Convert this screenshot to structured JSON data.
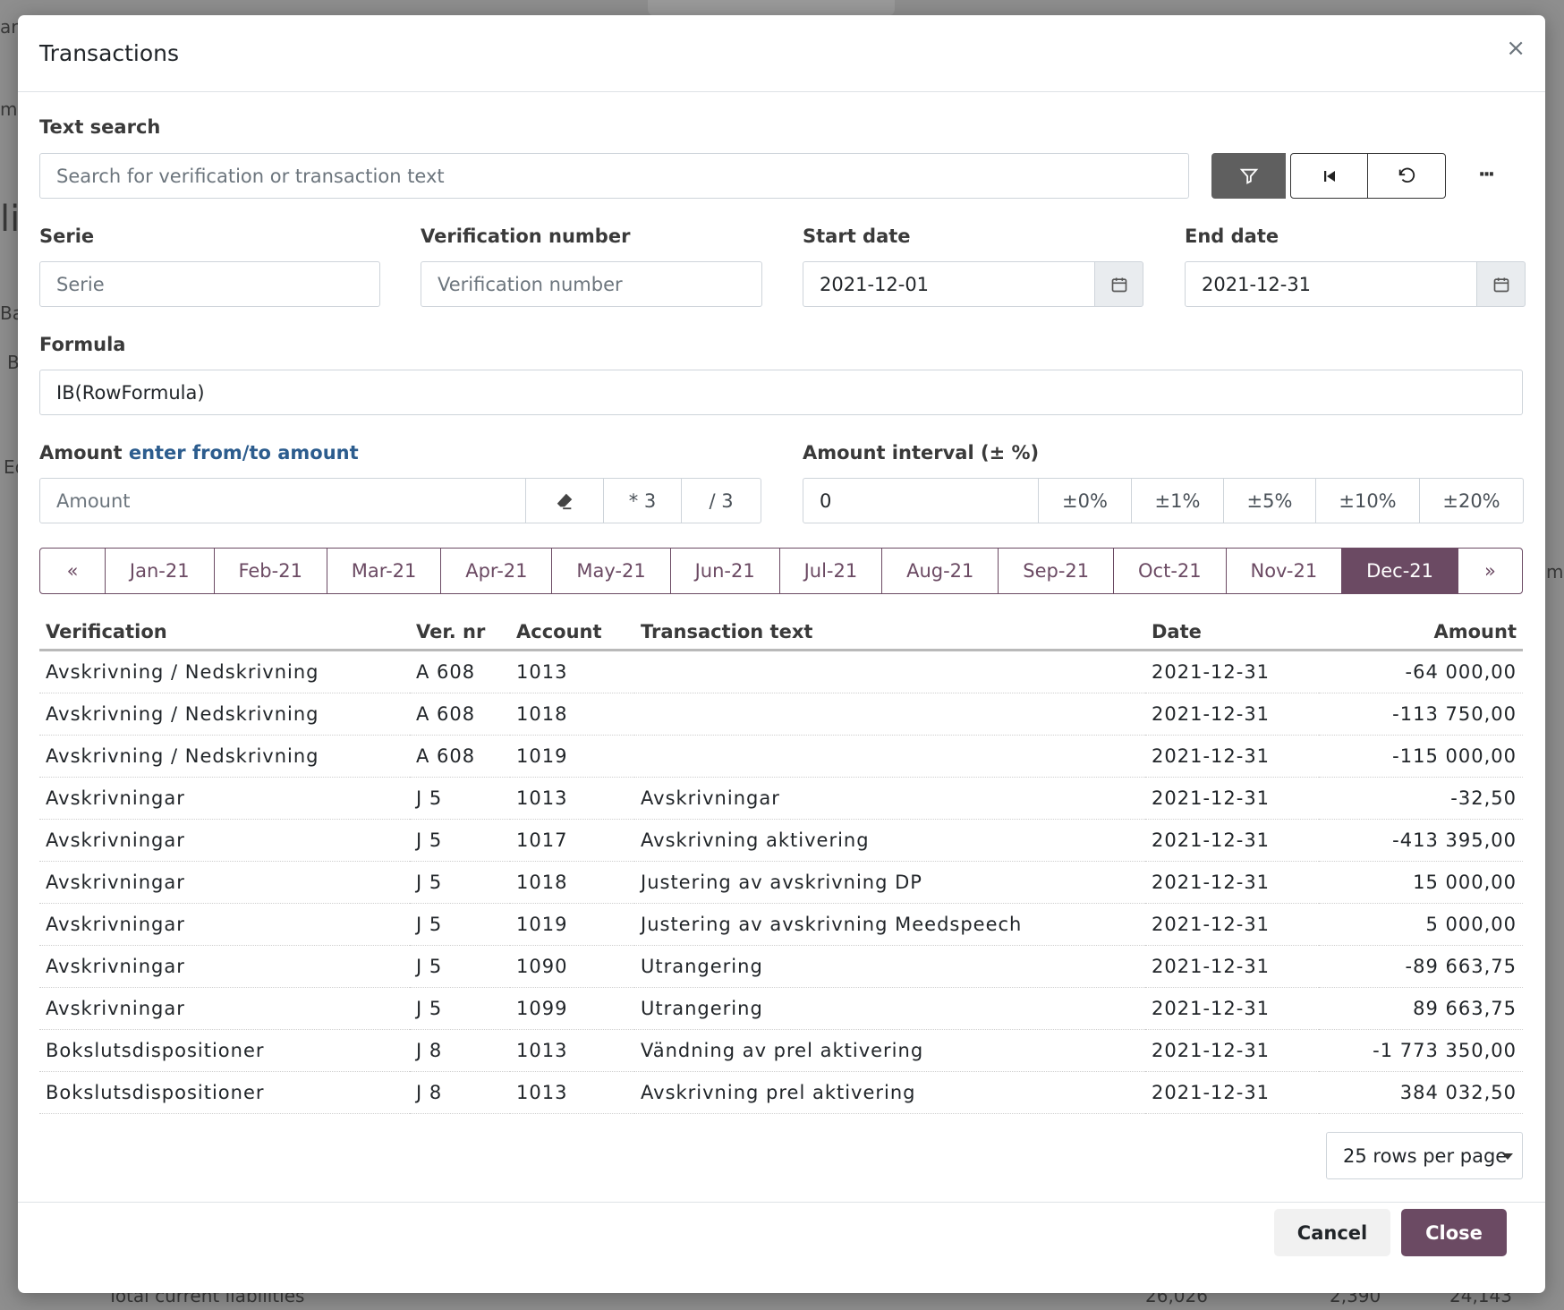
{
  "background": {
    "fragments": [
      "ar",
      "m",
      "li",
      "Bas",
      "B",
      "Eq",
      "m",
      "Total current liabilities",
      "26,026",
      "2,390",
      "24,143"
    ]
  },
  "modal": {
    "title": "Transactions",
    "close_symbol": "×"
  },
  "text_search": {
    "label": "Text search",
    "placeholder": "Search for verification or transaction text",
    "more_symbol": "···"
  },
  "serie": {
    "label": "Serie",
    "placeholder": "Serie"
  },
  "verification_number": {
    "label": "Verification number",
    "placeholder": "Verification number"
  },
  "start_date": {
    "label": "Start date",
    "value": "2021-12-01"
  },
  "end_date": {
    "label": "End date",
    "value": "2021-12-31"
  },
  "formula": {
    "label": "Formula",
    "value": "IB(RowFormula)"
  },
  "amount": {
    "label": "Amount",
    "link": "enter from/to amount",
    "placeholder": "Amount",
    "multiply_label": "* 3",
    "divide_label": "/ 3"
  },
  "amount_interval": {
    "label": "Amount interval (± %)",
    "value": "0",
    "options": [
      "±0%",
      "±1%",
      "±5%",
      "±10%",
      "±20%"
    ]
  },
  "months": {
    "prev": "«",
    "next": "»",
    "items": [
      "Jan-21",
      "Feb-21",
      "Mar-21",
      "Apr-21",
      "May-21",
      "Jun-21",
      "Jul-21",
      "Aug-21",
      "Sep-21",
      "Oct-21",
      "Nov-21",
      "Dec-21"
    ],
    "active": "Dec-21"
  },
  "table": {
    "columns": [
      "Verification",
      "Ver. nr",
      "Account",
      "Transaction text",
      "Date",
      "Amount"
    ],
    "rows": [
      [
        "Avskrivning / Nedskrivning",
        "A 608",
        "1013",
        "",
        "2021-12-31",
        "-64 000,00"
      ],
      [
        "Avskrivning / Nedskrivning",
        "A 608",
        "1018",
        "",
        "2021-12-31",
        "-113 750,00"
      ],
      [
        "Avskrivning / Nedskrivning",
        "A 608",
        "1019",
        "",
        "2021-12-31",
        "-115 000,00"
      ],
      [
        "Avskrivningar",
        "J 5",
        "1013",
        "Avskrivningar",
        "2021-12-31",
        "-32,50"
      ],
      [
        "Avskrivningar",
        "J 5",
        "1017",
        "Avskrivning aktivering",
        "2021-12-31",
        "-413 395,00"
      ],
      [
        "Avskrivningar",
        "J 5",
        "1018",
        "Justering av avskrivning DP",
        "2021-12-31",
        "15 000,00"
      ],
      [
        "Avskrivningar",
        "J 5",
        "1019",
        "Justering av avskrivning Meedspeech",
        "2021-12-31",
        "5 000,00"
      ],
      [
        "Avskrivningar",
        "J 5",
        "1090",
        "Utrangering",
        "2021-12-31",
        "-89 663,75"
      ],
      [
        "Avskrivningar",
        "J 5",
        "1099",
        "Utrangering",
        "2021-12-31",
        "89 663,75"
      ],
      [
        "Bokslutsdispositioner",
        "J 8",
        "1013",
        "Vändning av prel aktivering",
        "2021-12-31",
        "-1 773 350,00"
      ],
      [
        "Bokslutsdispositioner",
        "J 8",
        "1013",
        "Avskrivning prel aktivering",
        "2021-12-31",
        "384 032,50"
      ]
    ]
  },
  "pagination": {
    "rows_per_page": "25 rows per page"
  },
  "footer": {
    "cancel_label": "Cancel",
    "close_label": "Close"
  },
  "colors": {
    "accent": "#6b4a63",
    "link": "#2d5d8e",
    "filter_button": "#5f5f5f"
  }
}
